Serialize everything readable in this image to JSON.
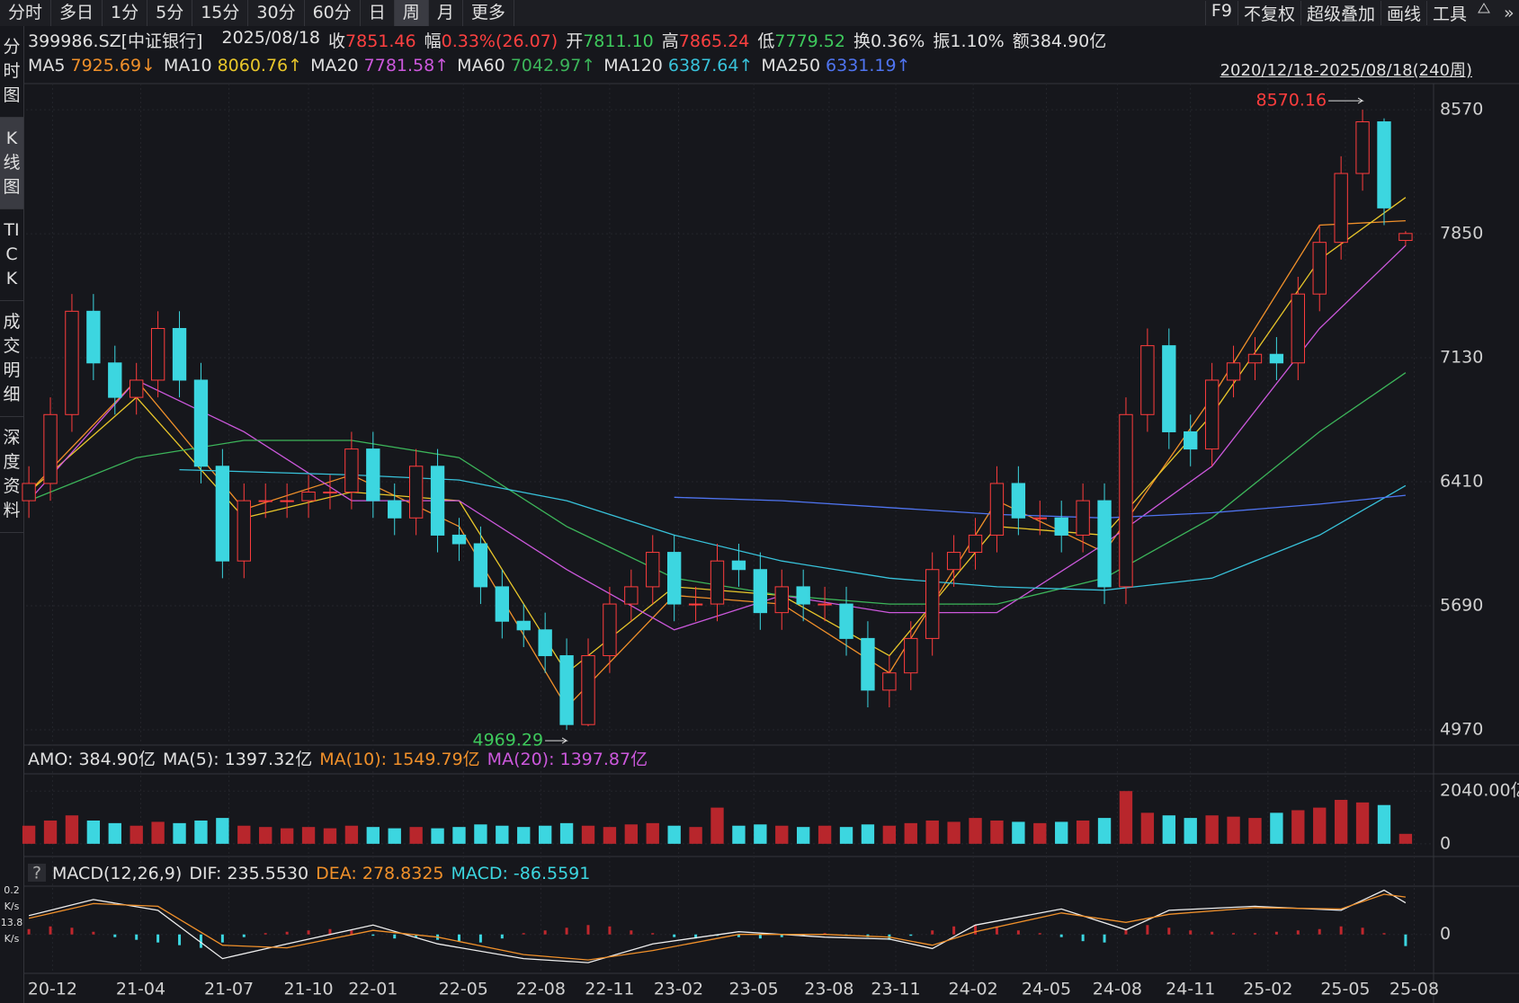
{
  "toolbar": {
    "tabs": [
      "分时",
      "多日",
      "1分",
      "5分",
      "15分",
      "30分",
      "60分",
      "日",
      "周",
      "月",
      "更多"
    ],
    "active": 8,
    "tools": [
      "F9",
      "不复权",
      "超级叠加",
      "画线",
      "工具"
    ]
  },
  "sidebar": {
    "items": [
      "分时图",
      "K线图",
      "TICK",
      "成交明细",
      "深度资料"
    ],
    "active": 1,
    "speed": [
      "0.2",
      "K/s",
      "13.8",
      "K/s"
    ]
  },
  "quote": {
    "symbol": "399986.SZ[中证银行]",
    "date": "2025/08/18",
    "fields": [
      {
        "label": "收",
        "value": "7851.46",
        "color": "#ff4040"
      },
      {
        "label": "幅",
        "value": "0.33%(26.07)",
        "color": "#ff4040"
      },
      {
        "label": "开",
        "value": "7811.10",
        "color": "#3ec95c"
      },
      {
        "label": "高",
        "value": "7865.24",
        "color": "#ff4040"
      },
      {
        "label": "低",
        "value": "7779.52",
        "color": "#3ec95c"
      },
      {
        "label": "换",
        "value": "0.36%",
        "color": "#e0e0e0"
      },
      {
        "label": "振",
        "value": "1.10%",
        "color": "#e0e0e0"
      },
      {
        "label": "额",
        "value": "384.90亿",
        "color": "#e0e0e0"
      }
    ],
    "range": "2020/12/18-2025/08/18(240周)"
  },
  "chart_data": [
    {
      "type": "candlestick",
      "up_color": "#ff3d3d",
      "down_color": "#3cd6e0",
      "grid": true,
      "open": [
        6300,
        6400,
        6800,
        7400,
        7100,
        6900,
        7000,
        7300,
        7000,
        6500,
        5950,
        6300,
        6300,
        6300,
        6350,
        6350,
        6600,
        6300,
        6200,
        6500,
        6100,
        6050,
        5800,
        5600,
        5550,
        5400,
        5000,
        5400,
        5700,
        5800,
        6000,
        5700,
        5700,
        5950,
        5900,
        5650,
        5800,
        5700,
        5700,
        5500,
        5200,
        5300,
        5500,
        5900,
        6000,
        6100,
        6400,
        6200,
        6200,
        6100,
        6300,
        5800,
        6800,
        7200,
        6700,
        6600,
        7000,
        7100,
        7150,
        7100,
        7500,
        7800,
        8200,
        8500,
        7811.1
      ],
      "high": [
        6500,
        6900,
        7500,
        7500,
        7200,
        7100,
        7400,
        7400,
        7100,
        6600,
        6400,
        6400,
        6400,
        6450,
        6450,
        6700,
        6700,
        6400,
        6600,
        6600,
        6200,
        6150,
        5900,
        5700,
        5650,
        5500,
        5500,
        5800,
        5900,
        6100,
        6100,
        5800,
        6050,
        6050,
        6000,
        5900,
        5900,
        5800,
        5800,
        5600,
        5400,
        5600,
        6000,
        6100,
        6200,
        6500,
        6500,
        6300,
        6300,
        6400,
        6400,
        6900,
        7300,
        7300,
        6800,
        7100,
        7200,
        7250,
        7250,
        7600,
        7900,
        8300,
        8570.16,
        8520,
        7865.24
      ],
      "low": [
        6200,
        6300,
        6700,
        7000,
        6800,
        6800,
        6900,
        6900,
        6400,
        5850,
        5850,
        6200,
        6200,
        6200,
        6250,
        6250,
        6200,
        6100,
        6100,
        6000,
        5950,
        5700,
        5500,
        5450,
        5300,
        4969.29,
        4990,
        5300,
        5600,
        5700,
        5600,
        5600,
        5600,
        5800,
        5550,
        5550,
        5600,
        5600,
        5400,
        5100,
        5100,
        5200,
        5400,
        5800,
        5900,
        6000,
        6100,
        6100,
        6000,
        6000,
        5700,
        5700,
        6700,
        6600,
        6500,
        6500,
        6900,
        7000,
        7000,
        7000,
        7400,
        7700,
        8100,
        7900,
        7779.52
      ],
      "close": [
        6400,
        6800,
        7400,
        7100,
        6900,
        7000,
        7300,
        7000,
        6500,
        5950,
        6300,
        6300,
        6300,
        6350,
        6350,
        6600,
        6300,
        6200,
        6500,
        6100,
        6050,
        5800,
        5600,
        5550,
        5400,
        5000,
        5400,
        5700,
        5800,
        6000,
        5700,
        5700,
        5950,
        5900,
        5650,
        5800,
        5700,
        5700,
        5500,
        5200,
        5300,
        5500,
        5900,
        6000,
        6100,
        6400,
        6200,
        6200,
        6100,
        6300,
        5800,
        6800,
        7200,
        6700,
        6600,
        7000,
        7100,
        7150,
        7100,
        7500,
        7800,
        8200,
        8500,
        8000,
        7851.46
      ],
      "xlim": [
        -0.13,
        65.3
      ],
      "xticks": [
        {
          "value": 1.1,
          "label": "20-12"
        },
        {
          "value": 5.2,
          "label": "21-04"
        },
        {
          "value": 9.3,
          "label": "21-07"
        },
        {
          "value": 13.0,
          "label": "21-10"
        },
        {
          "value": 16.0,
          "label": "22-01"
        },
        {
          "value": 20.2,
          "label": "22-05"
        },
        {
          "value": 23.8,
          "label": "22-08"
        },
        {
          "value": 27.0,
          "label": "22-11"
        },
        {
          "value": 30.2,
          "label": "23-02"
        },
        {
          "value": 33.7,
          "label": "23-05"
        },
        {
          "value": 37.2,
          "label": "23-08"
        },
        {
          "value": 40.3,
          "label": "23-11"
        },
        {
          "value": 43.9,
          "label": "24-02"
        },
        {
          "value": 47.3,
          "label": "24-05"
        },
        {
          "value": 50.6,
          "label": "24-08"
        },
        {
          "value": 54.0,
          "label": "24-11"
        },
        {
          "value": 57.6,
          "label": "25-02"
        },
        {
          "value": 61.2,
          "label": "25-05"
        },
        {
          "value": 64.4,
          "label": "25-08"
        }
      ],
      "ylim": [
        4881,
        8722
      ],
      "yticks": [
        4970,
        5690,
        6410,
        7130,
        7850,
        8570
      ],
      "annotations": {
        "high": 8570.16,
        "low": 4969.29
      },
      "lines": [
        {
          "name": "MA5",
          "value_label": "7925.69↓",
          "color": "#f0902a",
          "x": [
            0,
            5,
            10,
            15,
            20,
            25,
            30,
            35,
            40,
            45,
            50,
            55,
            60,
            64
          ],
          "values": [
            6350,
            7000,
            6250,
            6450,
            6150,
            5100,
            5750,
            5700,
            5300,
            6300,
            6000,
            6900,
            7900,
            7925.69
          ]
        },
        {
          "name": "MA10",
          "value_label": "8060.76↑",
          "color": "#e8c62a",
          "x": [
            0,
            5,
            10,
            15,
            20,
            25,
            30,
            35,
            40,
            45,
            50,
            55,
            60,
            64
          ],
          "values": [
            6350,
            6900,
            6200,
            6350,
            6300,
            5300,
            5800,
            5750,
            5400,
            6150,
            6100,
            6800,
            7700,
            8060.76
          ]
        },
        {
          "name": "MA20",
          "value_label": "7781.58↑",
          "color": "#cc58dc",
          "x": [
            0,
            5,
            10,
            15,
            20,
            25,
            30,
            35,
            40,
            45,
            50,
            55,
            60,
            64
          ],
          "values": [
            6300,
            7000,
            6700,
            6300,
            6300,
            5900,
            5550,
            5750,
            5650,
            5650,
            6050,
            6500,
            7300,
            7781.58
          ]
        },
        {
          "name": "MA60",
          "value_label": "7042.97↑",
          "color": "#3cb55a",
          "x": [
            0,
            5,
            10,
            15,
            20,
            25,
            30,
            35,
            40,
            45,
            50,
            55,
            60,
            64
          ],
          "values": [
            6300,
            6550,
            6650,
            6650,
            6550,
            6150,
            5850,
            5750,
            5700,
            5700,
            5850,
            6200,
            6700,
            7042.97
          ]
        },
        {
          "name": "MA120",
          "value_label": "6387.64↑",
          "color": "#38c2da",
          "x": [
            7,
            15,
            20,
            25,
            30,
            35,
            40,
            45,
            50,
            55,
            60,
            64
          ],
          "values": [
            6480,
            6450,
            6420,
            6300,
            6100,
            5950,
            5850,
            5800,
            5780,
            5850,
            6100,
            6387.64
          ]
        },
        {
          "name": "MA250",
          "value_label": "6331.19↑",
          "color": "#4f74f0",
          "x": [
            30,
            35,
            40,
            45,
            50,
            55,
            60,
            64
          ],
          "values": [
            6320,
            6300,
            6260,
            6220,
            6200,
            6230,
            6280,
            6331.19
          ]
        }
      ]
    },
    {
      "type": "bar",
      "header": [
        {
          "text": "AMO: 384.90亿",
          "color": "#e0e0e0"
        },
        {
          "text": "MA(5): 1397.32亿",
          "color": "#e0e0e0"
        },
        {
          "text": "MA(10): 1549.79亿",
          "color": "#f0902a"
        },
        {
          "text": "MA(20): 1397.87亿",
          "color": "#cc58dc"
        }
      ],
      "values": [
        700,
        900,
        1100,
        900,
        800,
        700,
        850,
        800,
        900,
        1000,
        700,
        650,
        600,
        650,
        600,
        700,
        650,
        600,
        650,
        600,
        650,
        750,
        700,
        650,
        700,
        800,
        700,
        650,
        750,
        800,
        700,
        650,
        1400,
        700,
        750,
        700,
        650,
        700,
        650,
        750,
        700,
        800,
        900,
        850,
        1000,
        900,
        850,
        800,
        850,
        900,
        1000,
        2040,
        1200,
        1100,
        1000,
        1100,
        1050,
        1000,
        1200,
        1300,
        1400,
        1700,
        1600,
        1500,
        384.9
      ],
      "up_color": "#b8262c",
      "down_color": "#3cd6e0",
      "ylim": [
        -492,
        2708
      ],
      "yticks": [
        {
          "value": 2040,
          "label": "2040.00亿"
        },
        0
      ]
    },
    {
      "type": "macd",
      "header": [
        {
          "text": "MACD(12,26,9)",
          "color": "#e0e0e0"
        },
        {
          "text": "DIF: 235.5530",
          "color": "#e0e0e0"
        },
        {
          "text": "DEA: 278.8325",
          "color": "#f0902a"
        },
        {
          "text": "MACD: -86.5591",
          "color": "#3cd6e0"
        }
      ],
      "x": [
        0,
        3,
        6,
        9,
        12,
        16,
        19,
        23,
        26,
        29,
        33,
        37,
        40,
        42,
        44,
        48,
        51,
        53,
        57,
        61,
        63,
        64
      ],
      "dif": [
        140,
        260,
        180,
        -180,
        -70,
        70,
        -70,
        -180,
        -210,
        -70,
        20,
        -20,
        -35,
        -105,
        70,
        190,
        35,
        180,
        210,
        180,
        330,
        235.553
      ],
      "dea": [
        120,
        230,
        210,
        -80,
        -100,
        30,
        -20,
        -150,
        -190,
        -120,
        0,
        0,
        -20,
        -80,
        20,
        160,
        90,
        150,
        200,
        190,
        300,
        278.8325
      ],
      "dif_color": "#eeeeee",
      "dea_color": "#f0902a",
      "histogram": [
        40,
        60,
        50,
        20,
        -20,
        -40,
        -60,
        -80,
        -100,
        -60,
        -20,
        10,
        20,
        30,
        40,
        30,
        -10,
        -30,
        -20,
        -40,
        -50,
        -60,
        -30,
        10,
        30,
        50,
        70,
        60,
        30,
        10,
        -20,
        -30,
        -10,
        -20,
        -30,
        -20,
        -10,
        10,
        -10,
        -20,
        -40,
        -10,
        30,
        60,
        70,
        60,
        30,
        10,
        -20,
        -50,
        -60,
        40,
        70,
        50,
        30,
        20,
        10,
        10,
        20,
        30,
        40,
        60,
        50,
        10,
        -86.5591
      ],
      "up_color": "#c0272d",
      "down_color": "#3cd6e0",
      "ylim": [
        -290,
        360
      ],
      "yticks": [
        0
      ]
    }
  ]
}
